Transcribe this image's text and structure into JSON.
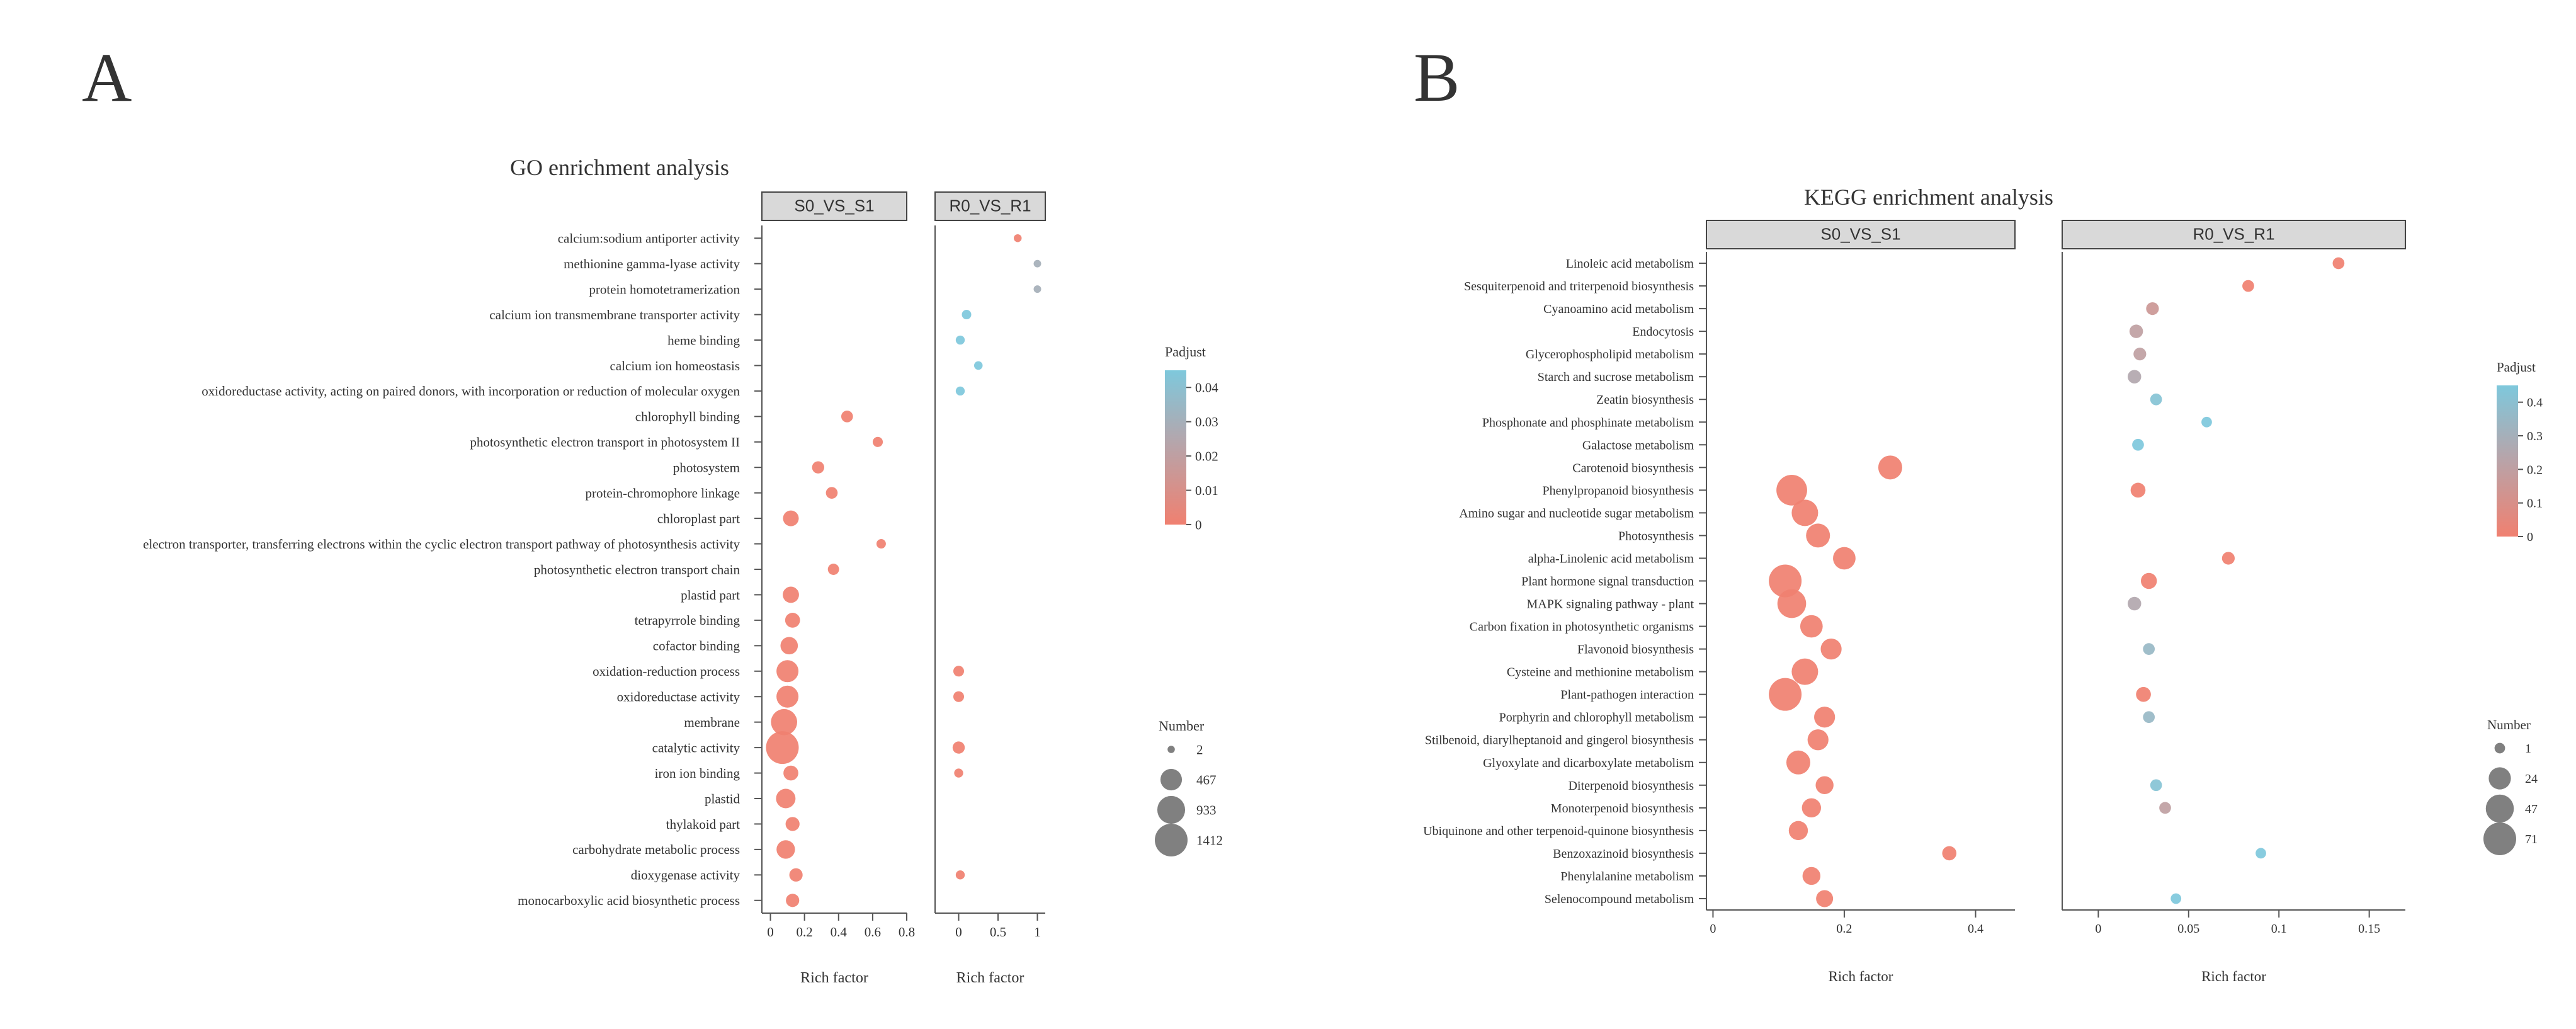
{
  "panel_labels": {
    "a": "A",
    "b": "B"
  },
  "colors": {
    "high": "#f08070",
    "mid": "#b9a3a8",
    "low": "#7ec8dc",
    "strip": "#d9d9d9",
    "axis": "#555555"
  },
  "chart_data": [
    {
      "type": "scatter",
      "title": "GO enrichment analysis",
      "xlabel": "Rich factor",
      "facets": [
        "S0_VS_S1",
        "R0_VS_R1"
      ],
      "xlim": [
        [
          -0.05,
          0.8
        ],
        [
          -0.3,
          1.1
        ]
      ],
      "xticks": [
        [
          0,
          0.2,
          0.4,
          0.6,
          0.8
        ],
        [
          0,
          0.5,
          1
        ]
      ],
      "xtick_labels": [
        [
          "0",
          "0.2",
          "0.4",
          "0.6",
          "0.8"
        ],
        [
          "0",
          "0.5",
          "1"
        ]
      ],
      "categories": [
        "calcium:sodium antiporter activity",
        "methionine gamma-lyase activity",
        "protein homotetramerization",
        "calcium ion transmembrane transporter activity",
        "heme binding",
        "calcium ion homeostasis",
        "oxidoreductase activity, acting on paired donors, with incorporation or reduction of molecular oxygen",
        "chlorophyll binding",
        "photosynthetic electron transport in photosystem II",
        "photosystem",
        "protein-chromophore linkage",
        "chloroplast part",
        "electron transporter, transferring electrons within the cyclic electron transport pathway of photosynthesis activity",
        "photosynthetic electron transport chain",
        "plastid part",
        "tetrapyrrole binding",
        "cofactor binding",
        "oxidation-reduction process",
        "oxidoreductase activity",
        "membrane",
        "catalytic activity",
        "iron ion binding",
        "plastid",
        "thylakoid part",
        "carbohydrate metabolic process",
        "dioxygenase activity",
        "monocarboxylic acid biosynthetic process"
      ],
      "series": [
        {
          "name": "S0_VS_S1",
          "points": [
            {
              "category": "chlorophyll binding",
              "x": 0.45,
              "number": 60,
              "padjust": 0.0
            },
            {
              "category": "photosynthetic electron transport in photosystem II",
              "x": 0.63,
              "number": 30,
              "padjust": 0.0
            },
            {
              "category": "photosystem",
              "x": 0.28,
              "number": 70,
              "padjust": 0.0
            },
            {
              "category": "protein-chromophore linkage",
              "x": 0.36,
              "number": 60,
              "padjust": 0.0
            },
            {
              "category": "chloroplast part",
              "x": 0.12,
              "number": 180,
              "padjust": 0.0
            },
            {
              "category": "electron transporter, transferring electrons within the cyclic electron transport pathway of photosynthesis activity",
              "x": 0.65,
              "number": 20,
              "padjust": 0.0
            },
            {
              "category": "photosynthetic electron transport chain",
              "x": 0.37,
              "number": 50,
              "padjust": 0.0
            },
            {
              "category": "plastid part",
              "x": 0.12,
              "number": 200,
              "padjust": 0.0
            },
            {
              "category": "tetrapyrrole binding",
              "x": 0.13,
              "number": 150,
              "padjust": 0.0
            },
            {
              "category": "cofactor binding",
              "x": 0.11,
              "number": 250,
              "padjust": 0.0
            },
            {
              "category": "oxidation-reduction process",
              "x": 0.1,
              "number": 500,
              "padjust": 0.0
            },
            {
              "category": "oxidoreductase activity",
              "x": 0.1,
              "number": 500,
              "padjust": 0.0
            },
            {
              "category": "membrane",
              "x": 0.08,
              "number": 800,
              "padjust": 0.0
            },
            {
              "category": "catalytic activity",
              "x": 0.07,
              "number": 1412,
              "padjust": 0.0
            },
            {
              "category": "iron ion binding",
              "x": 0.12,
              "number": 150,
              "padjust": 0.0
            },
            {
              "category": "plastid",
              "x": 0.09,
              "number": 350,
              "padjust": 0.0
            },
            {
              "category": "thylakoid part",
              "x": 0.13,
              "number": 120,
              "padjust": 0.0
            },
            {
              "category": "carbohydrate metabolic process",
              "x": 0.09,
              "number": 300,
              "padjust": 0.0
            },
            {
              "category": "dioxygenase activity",
              "x": 0.15,
              "number": 100,
              "padjust": 0.0
            },
            {
              "category": "monocarboxylic acid biosynthetic process",
              "x": 0.13,
              "number": 100,
              "padjust": 0.0
            }
          ]
        },
        {
          "name": "R0_VS_R1",
          "points": [
            {
              "category": "calcium:sodium antiporter activity",
              "x": 0.75,
              "number": 5,
              "padjust": 0.0
            },
            {
              "category": "methionine gamma-lyase activity",
              "x": 1.0,
              "number": 3,
              "padjust": 0.03
            },
            {
              "category": "protein homotetramerization",
              "x": 1.0,
              "number": 3,
              "padjust": 0.03
            },
            {
              "category": "calcium ion transmembrane transporter activity",
              "x": 0.1,
              "number": 20,
              "padjust": 0.045
            },
            {
              "category": "heme binding",
              "x": 0.02,
              "number": 15,
              "padjust": 0.045
            },
            {
              "category": "calcium ion homeostasis",
              "x": 0.25,
              "number": 10,
              "padjust": 0.045
            },
            {
              "category": "oxidoreductase activity, acting on paired donors, with incorporation or reduction of molecular oxygen",
              "x": 0.02,
              "number": 15,
              "padjust": 0.045
            },
            {
              "category": "oxidation-reduction process",
              "x": 0.0,
              "number": 40,
              "padjust": 0.0
            },
            {
              "category": "oxidoreductase activity",
              "x": 0.0,
              "number": 40,
              "padjust": 0.0
            },
            {
              "category": "catalytic activity",
              "x": 0.0,
              "number": 70,
              "padjust": 0.0
            },
            {
              "category": "iron ion binding",
              "x": 0.0,
              "number": 15,
              "padjust": 0.0
            },
            {
              "category": "dioxygenase activity",
              "x": 0.02,
              "number": 15,
              "padjust": 0.0
            }
          ]
        }
      ],
      "legend_color": {
        "title": "Padjust",
        "ticks": [
          0,
          0.01,
          0.02,
          0.03,
          0.04
        ],
        "tick_labels": [
          "0",
          "0.01",
          "0.02",
          "0.03",
          "0.04"
        ],
        "range": [
          0,
          0.045
        ]
      },
      "legend_size": {
        "title": "Number",
        "values": [
          2,
          467,
          933,
          1412
        ],
        "labels": [
          "2",
          "467",
          "933",
          "1412"
        ]
      }
    },
    {
      "type": "scatter",
      "title": "KEGG enrichment analysis",
      "xlabel": "Rich factor",
      "facets": [
        "S0_VS_S1",
        "R0_VS_R1"
      ],
      "xlim": [
        [
          -0.01,
          0.46
        ],
        [
          -0.02,
          0.17
        ]
      ],
      "xticks": [
        [
          0,
          0.2,
          0.4
        ],
        [
          0,
          0.05,
          0.1,
          0.15
        ]
      ],
      "xtick_labels": [
        [
          "0",
          "0.2",
          "0.4"
        ],
        [
          "0",
          "0.05",
          "0.1",
          "0.15"
        ]
      ],
      "categories": [
        "Linoleic acid metabolism",
        "Sesquiterpenoid and triterpenoid biosynthesis",
        "Cyanoamino acid metabolism",
        "Endocytosis",
        "Glycerophospholipid metabolism",
        "Starch and sucrose metabolism",
        "Zeatin biosynthesis",
        "Phosphonate and phosphinate metabolism",
        "Galactose metabolism",
        "Carotenoid biosynthesis",
        "Phenylpropanoid biosynthesis",
        "Amino sugar and nucleotide sugar metabolism",
        "Photosynthesis",
        "alpha-Linolenic acid metabolism",
        "Plant hormone signal transduction",
        "MAPK signaling pathway - plant",
        "Carbon fixation in photosynthetic organisms",
        "Flavonoid biosynthesis",
        "Cysteine and methionine metabolism",
        "Plant-pathogen interaction",
        "Porphyrin and chlorophyll metabolism",
        "Stilbenoid, diarylheptanoid and gingerol biosynthesis",
        "Glyoxylate and dicarboxylate metabolism",
        "Diterpenoid biosynthesis",
        "Monoterpenoid biosynthesis",
        "Ubiquinone and other terpenoid-quinone biosynthesis",
        "Benzoxazinoid biosynthesis",
        "Phenylalanine metabolism",
        "Selenocompound metabolism"
      ],
      "series": [
        {
          "name": "S0_VS_S1",
          "points": [
            {
              "category": "Carotenoid biosynthesis",
              "x": 0.27,
              "number": 30,
              "padjust": 0.0
            },
            {
              "category": "Phenylpropanoid biosynthesis",
              "x": 0.12,
              "number": 60,
              "padjust": 0.0
            },
            {
              "category": "Amino sugar and nucleotide sugar metabolism",
              "x": 0.14,
              "number": 40,
              "padjust": 0.0
            },
            {
              "category": "Photosynthesis",
              "x": 0.16,
              "number": 30,
              "padjust": 0.0
            },
            {
              "category": "alpha-Linolenic acid metabolism",
              "x": 0.2,
              "number": 25,
              "padjust": 0.0
            },
            {
              "category": "Plant hormone signal transduction",
              "x": 0.11,
              "number": 71,
              "padjust": 0.0
            },
            {
              "category": "MAPK signaling pathway - plant",
              "x": 0.12,
              "number": 50,
              "padjust": 0.0
            },
            {
              "category": "Carbon fixation in photosynthetic organisms",
              "x": 0.15,
              "number": 25,
              "padjust": 0.0
            },
            {
              "category": "Flavonoid biosynthesis",
              "x": 0.18,
              "number": 20,
              "padjust": 0.0
            },
            {
              "category": "Cysteine and methionine metabolism",
              "x": 0.14,
              "number": 40,
              "padjust": 0.0
            },
            {
              "category": "Plant-pathogen interaction",
              "x": 0.11,
              "number": 71,
              "padjust": 0.0
            },
            {
              "category": "Porphyrin and chlorophyll metabolism",
              "x": 0.17,
              "number": 20,
              "padjust": 0.0
            },
            {
              "category": "Stilbenoid, diarylheptanoid and gingerol biosynthesis",
              "x": 0.16,
              "number": 20,
              "padjust": 0.0
            },
            {
              "category": "Glyoxylate and dicarboxylate metabolism",
              "x": 0.13,
              "number": 30,
              "padjust": 0.0
            },
            {
              "category": "Diterpenoid biosynthesis",
              "x": 0.17,
              "number": 12,
              "padjust": 0.0
            },
            {
              "category": "Monoterpenoid biosynthesis",
              "x": 0.15,
              "number": 15,
              "padjust": 0.0
            },
            {
              "category": "Ubiquinone and other terpenoid-quinone biosynthesis",
              "x": 0.13,
              "number": 15,
              "padjust": 0.0
            },
            {
              "category": "Benzoxazinoid biosynthesis",
              "x": 0.36,
              "number": 5,
              "padjust": 0.0
            },
            {
              "category": "Phenylalanine metabolism",
              "x": 0.15,
              "number": 12,
              "padjust": 0.0
            },
            {
              "category": "Selenocompound metabolism",
              "x": 0.17,
              "number": 10,
              "padjust": 0.0
            }
          ]
        },
        {
          "name": "R0_VS_R1",
          "points": [
            {
              "category": "Linoleic acid metabolism",
              "x": 0.133,
              "number": 2,
              "padjust": 0.0
            },
            {
              "category": "Sesquiterpenoid and triterpenoid biosynthesis",
              "x": 0.083,
              "number": 2,
              "padjust": 0.0
            },
            {
              "category": "Cyanoamino acid metabolism",
              "x": 0.03,
              "number": 3,
              "padjust": 0.15
            },
            {
              "category": "Endocytosis",
              "x": 0.021,
              "number": 4,
              "padjust": 0.2
            },
            {
              "category": "Glycerophospholipid metabolism",
              "x": 0.023,
              "number": 3,
              "padjust": 0.2
            },
            {
              "category": "Starch and sucrose metabolism",
              "x": 0.02,
              "number": 4,
              "padjust": 0.25
            },
            {
              "category": "Zeatin biosynthesis",
              "x": 0.032,
              "number": 2,
              "padjust": 0.42
            },
            {
              "category": "Phosphonate and phosphinate metabolism",
              "x": 0.06,
              "number": 1,
              "padjust": 0.45
            },
            {
              "category": "Galactose metabolism",
              "x": 0.022,
              "number": 2,
              "padjust": 0.45
            },
            {
              "category": "Phenylpropanoid biosynthesis",
              "x": 0.022,
              "number": 6,
              "padjust": 0.0
            },
            {
              "category": "alpha-Linolenic acid metabolism",
              "x": 0.072,
              "number": 3,
              "padjust": 0.0
            },
            {
              "category": "Plant hormone signal transduction",
              "x": 0.028,
              "number": 8,
              "padjust": 0.0
            },
            {
              "category": "MAPK signaling pathway - plant",
              "x": 0.02,
              "number": 4,
              "padjust": 0.25
            },
            {
              "category": "Flavonoid biosynthesis",
              "x": 0.028,
              "number": 2,
              "padjust": 0.35
            },
            {
              "category": "Plant-pathogen interaction",
              "x": 0.025,
              "number": 6,
              "padjust": 0.0
            },
            {
              "category": "Porphyrin and chlorophyll metabolism",
              "x": 0.028,
              "number": 2,
              "padjust": 0.35
            },
            {
              "category": "Diterpenoid biosynthesis",
              "x": 0.032,
              "number": 2,
              "padjust": 0.42
            },
            {
              "category": "Monoterpenoid biosynthesis",
              "x": 0.037,
              "number": 2,
              "padjust": 0.2
            },
            {
              "category": "Benzoxazinoid biosynthesis",
              "x": 0.09,
              "number": 1,
              "padjust": 0.45
            },
            {
              "category": "Selenocompound metabolism",
              "x": 0.043,
              "number": 1,
              "padjust": 0.45
            }
          ]
        }
      ],
      "legend_color": {
        "title": "Padjust",
        "ticks": [
          0,
          0.1,
          0.2,
          0.3,
          0.4
        ],
        "tick_labels": [
          "0",
          "0.1",
          "0.2",
          "0.3",
          "0.4"
        ],
        "range": [
          0,
          0.45
        ]
      },
      "legend_size": {
        "title": "Number",
        "values": [
          1,
          24,
          47,
          71
        ],
        "labels": [
          "1",
          "24",
          "47",
          "71"
        ]
      }
    }
  ]
}
